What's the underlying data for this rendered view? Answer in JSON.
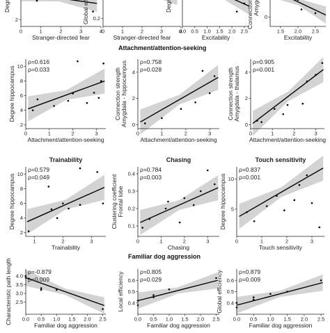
{
  "sections": {
    "attachment": "Attachment/attention-seeking",
    "familiar": "Familiar dog aggression"
  },
  "chart_data": [
    {
      "type": "scatter",
      "title": "",
      "xlabel": "Stranger-directed fear",
      "ylabel": "Degree",
      "stats": [],
      "xticks": [
        "0",
        "1",
        "2",
        "3",
        "4"
      ],
      "yticks": [
        "2"
      ],
      "xlim": [
        0,
        4
      ],
      "ylim": [
        1.5,
        5
      ],
      "points": [
        [
          0.1,
          4.6
        ],
        [
          0.3,
          4.2
        ],
        [
          0.8,
          3.4
        ],
        [
          3.6,
          2.6
        ]
      ],
      "fit": [
        [
          0,
          4.0
        ],
        [
          3.8,
          3.2
        ]
      ]
    },
    {
      "type": "scatter",
      "title": "",
      "xlabel": "Stranger-directed fear",
      "ylabel": "Global efficiency",
      "stats": [],
      "xticks": [
        "0",
        "1",
        "2",
        "3",
        "4"
      ],
      "yticks": [
        "0.2"
      ],
      "xlim": [
        0,
        4
      ],
      "ylim": [
        0.15,
        0.45
      ],
      "points": [
        [
          0.2,
          0.42
        ],
        [
          0.9,
          0.39
        ],
        [
          1.5,
          0.36
        ]
      ],
      "fit": [
        [
          0,
          0.44
        ],
        [
          3.8,
          0.34
        ]
      ]
    },
    {
      "type": "scatter",
      "title": "",
      "xlabel": "Excitability",
      "ylabel": "Degree",
      "stats": [],
      "xticks": [
        "0.0",
        "0.5",
        "1.0",
        "1.5",
        "2.0",
        "2.5"
      ],
      "yticks": [],
      "xlim": [
        0,
        2.7
      ],
      "ylim": [
        1.5,
        5
      ],
      "points": [
        [
          1.6,
          4.2
        ],
        [
          2.2,
          2.6
        ],
        [
          2.5,
          3.2
        ]
      ],
      "fit": [
        [
          0,
          5.2
        ],
        [
          2.7,
          3.0
        ]
      ]
    },
    {
      "type": "scatter",
      "title": "",
      "xlabel": "Excitability",
      "ylabel": "Connection strength Amygdala",
      "stats": [],
      "xticks": [
        "1.5",
        "2.0",
        "2.5"
      ],
      "yticks": [
        "0"
      ],
      "xlim": [
        1.2,
        2.8
      ],
      "ylim": [
        -0.5,
        2
      ],
      "points": [
        [
          1.6,
          1.4
        ],
        [
          2.0,
          0.9
        ],
        [
          2.1,
          0.4
        ],
        [
          2.5,
          0.2
        ]
      ],
      "fit": [
        [
          1.2,
          1.5
        ],
        [
          2.8,
          0.1
        ]
      ]
    },
    {
      "type": "scatter",
      "title": "",
      "xlabel": "Attachment/attention-seeking",
      "ylabel": "Degree hippocampus",
      "stats": [
        "ρ=0.616",
        "ρ=0.033"
      ],
      "xticks": [
        "0",
        "1",
        "2",
        "3"
      ],
      "yticks": [
        "2",
        "4",
        "6",
        "8",
        "10"
      ],
      "xlim": [
        0,
        3.4
      ],
      "ylim": [
        1.5,
        11
      ],
      "points": [
        [
          0.3,
          4.0
        ],
        [
          0.5,
          5.5
        ],
        [
          1.2,
          4.6
        ],
        [
          1.8,
          5.3
        ],
        [
          2.0,
          6.3
        ],
        [
          2.2,
          10.7
        ],
        [
          2.6,
          5.0
        ],
        [
          3.1,
          5.7
        ],
        [
          3.2,
          8.0
        ],
        [
          3.3,
          10.4
        ],
        [
          2.9,
          6.4
        ]
      ],
      "fit": [
        [
          0.1,
          4.2
        ],
        [
          3.35,
          8.0
        ]
      ]
    },
    {
      "type": "scatter",
      "title": "",
      "xlabel": "Attachment/attention-seeking",
      "ylabel": "Connection strength Amygdala - hippocampus",
      "stats": [
        "ρ=0.758",
        "ρ=0.028"
      ],
      "xticks": [
        "0",
        "1",
        "2",
        "3"
      ],
      "yticks": [
        "0",
        "2",
        "4"
      ],
      "xlim": [
        0,
        3.4
      ],
      "ylim": [
        -0.3,
        5
      ],
      "points": [
        [
          0.3,
          0.1
        ],
        [
          1.0,
          0.5
        ],
        [
          1.8,
          1.2
        ],
        [
          2.4,
          1.7
        ],
        [
          2.7,
          4.1
        ],
        [
          3.0,
          2.4
        ],
        [
          3.2,
          3.7
        ]
      ],
      "fit": [
        [
          0.1,
          0.2
        ],
        [
          3.35,
          3.6
        ]
      ]
    },
    {
      "type": "scatter",
      "title": "",
      "xlabel": "Attachment/attention-seeking",
      "ylabel": "Connection strength Amygdala - thalamus",
      "stats": [
        "ρ=0.905",
        "ρ=0.001"
      ],
      "xticks": [
        "0",
        "1",
        "2",
        "3"
      ],
      "yticks": [
        "0",
        "2",
        "4"
      ],
      "xlim": [
        0,
        3.4
      ],
      "ylim": [
        -0.3,
        5
      ],
      "points": [
        [
          0.3,
          0.3
        ],
        [
          0.5,
          0.2
        ],
        [
          1.1,
          1.2
        ],
        [
          1.5,
          0.8
        ],
        [
          1.7,
          1.5
        ],
        [
          2.4,
          1.6
        ],
        [
          2.6,
          3.3
        ],
        [
          3.0,
          3.8
        ],
        [
          3.3,
          4.7
        ]
      ],
      "fit": [
        [
          0.1,
          0.1
        ],
        [
          3.35,
          4.2
        ]
      ]
    },
    {
      "type": "scatter",
      "title": "Trainability",
      "xlabel": "Trainability",
      "ylabel": "Degree hippocampus",
      "stats": [
        "ρ=0.579",
        "ρ=0.049"
      ],
      "xticks": [
        "1",
        "2",
        "3"
      ],
      "yticks": [
        "2",
        "4",
        "6",
        "8",
        "10"
      ],
      "xlim": [
        0.7,
        3.5
      ],
      "ylim": [
        1.5,
        11
      ],
      "points": [
        [
          0.8,
          2.2
        ],
        [
          1.5,
          8.3
        ],
        [
          1.6,
          5.2
        ],
        [
          1.8,
          4.0
        ],
        [
          2.0,
          6.0
        ],
        [
          2.2,
          5.3
        ],
        [
          2.6,
          10.8
        ],
        [
          2.6,
          5.8
        ],
        [
          3.4,
          6.0
        ],
        [
          3.2,
          10.3
        ]
      ],
      "fit": [
        [
          0.75,
          3.5
        ],
        [
          3.45,
          8.2
        ]
      ]
    },
    {
      "type": "scatter",
      "title": "Chasing",
      "xlabel": "Chasing",
      "ylabel": "Clustering coefficient Frontal lobe",
      "stats": [
        "ρ=0.784",
        "ρ=0.003"
      ],
      "xticks": [
        "0",
        "1",
        "2",
        "3"
      ],
      "yticks": [
        "0.1",
        "0.2",
        "0.3",
        "0.4"
      ],
      "xlim": [
        0,
        3.5
      ],
      "ylim": [
        0.04,
        0.44
      ],
      "points": [
        [
          0.2,
          0.09
        ],
        [
          0.5,
          0.14
        ],
        [
          1.2,
          0.2
        ],
        [
          1.3,
          0.24
        ],
        [
          1.8,
          0.12
        ],
        [
          2.0,
          0.26
        ],
        [
          2.4,
          0.22
        ],
        [
          2.7,
          0.3
        ],
        [
          3.0,
          0.42
        ],
        [
          3.3,
          0.34
        ]
      ],
      "fit": [
        [
          0.1,
          0.12
        ],
        [
          3.45,
          0.32
        ]
      ]
    },
    {
      "type": "scatter",
      "title": "Touch sensitivity",
      "xlabel": "Touch sensitivity",
      "ylabel": "Degree hippocampus",
      "stats": [
        "ρ=0.837",
        "ρ=0.001"
      ],
      "xticks": [
        "0",
        "1",
        "2",
        "3"
      ],
      "yticks": [
        "5",
        "10"
      ],
      "xlim": [
        0,
        3.5
      ],
      "ylim": [
        0.5,
        12
      ],
      "points": [
        [
          0.4,
          4.5
        ],
        [
          0.7,
          3.0
        ],
        [
          1.2,
          5.5
        ],
        [
          1.6,
          7.2
        ],
        [
          1.9,
          4.8
        ],
        [
          2.3,
          6.5
        ],
        [
          2.5,
          9.0
        ],
        [
          2.8,
          10.6
        ],
        [
          3.0,
          6.0
        ],
        [
          3.3,
          2.0
        ]
      ],
      "fit": [
        [
          0.1,
          3.8
        ],
        [
          3.45,
          11.8
        ]
      ]
    },
    {
      "type": "scatter",
      "title": "",
      "xlabel": "Familiar dog aggression",
      "ylabel": "Characteristic path length",
      "stats": [
        "ρ=-0.879",
        "ρ=0.009"
      ],
      "xticks": [
        "0.0",
        "0.5",
        "1.0",
        "1.5",
        "2.0",
        "2.5"
      ],
      "yticks": [
        "2.5",
        "3.0",
        "3.5",
        "4.0"
      ],
      "xlim": [
        0,
        2.6
      ],
      "ylim": [
        1.8,
        4.4
      ],
      "points": [
        [
          0,
          4.0
        ],
        [
          0,
          3.9
        ],
        [
          0.1,
          3.85
        ],
        [
          0.5,
          3.3
        ],
        [
          0.5,
          3.2
        ],
        [
          1.0,
          3.2
        ],
        [
          2.5,
          2.1
        ]
      ],
      "fit": [
        [
          0,
          3.9
        ],
        [
          2.55,
          2.3
        ]
      ]
    },
    {
      "type": "scatter",
      "title": "",
      "xlabel": "Familiar dog aggression",
      "ylabel": "Local efficiency",
      "stats": [
        "ρ=0.805",
        "ρ=0.029"
      ],
      "xticks": [
        "0.0",
        "0.5",
        "1.0",
        "1.5",
        "2.0",
        "2.5"
      ],
      "yticks": [
        "0.4",
        "0.5",
        "0.6"
      ],
      "xlim": [
        0,
        2.6
      ],
      "ylim": [
        0.3,
        0.7
      ],
      "points": [
        [
          0,
          0.38
        ],
        [
          0,
          0.42
        ],
        [
          0.5,
          0.45
        ],
        [
          0.5,
          0.47
        ],
        [
          1.0,
          0.52
        ],
        [
          2.5,
          0.62
        ]
      ],
      "fit": [
        [
          0,
          0.42
        ],
        [
          2.55,
          0.6
        ]
      ]
    },
    {
      "type": "scatter",
      "title": "",
      "xlabel": "Familiar dog aggression",
      "ylabel": "Global efficiency",
      "stats": [
        "ρ=0.879",
        "ρ=0.009"
      ],
      "xticks": [
        "0.0",
        "0.5",
        "1.0",
        "1.5",
        "2.0",
        "2.5"
      ],
      "yticks": [
        "0.4",
        "0.5",
        "0.6"
      ],
      "xlim": [
        0,
        2.6
      ],
      "ylim": [
        0.3,
        0.7
      ],
      "points": [
        [
          0,
          0.36
        ],
        [
          0,
          0.4
        ],
        [
          0.5,
          0.43
        ],
        [
          0.5,
          0.45
        ],
        [
          1.0,
          0.48
        ],
        [
          1.5,
          0.5
        ],
        [
          2.5,
          0.6
        ]
      ],
      "fit": [
        [
          0,
          0.38
        ],
        [
          2.55,
          0.58
        ]
      ]
    }
  ]
}
